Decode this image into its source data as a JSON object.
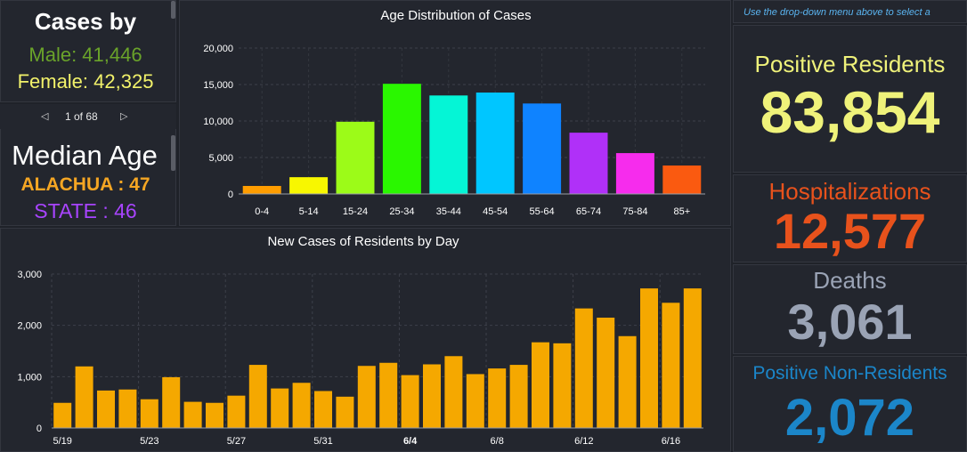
{
  "cases_by": {
    "title": "Cases by",
    "male": "Male: 41,446",
    "female": "Female: 42,325",
    "male_color": "#6aa32a",
    "female_color": "#f2f26a",
    "pager": "1 of 68"
  },
  "median_age": {
    "title": "Median Age",
    "county": "ALACHUA : 47",
    "state": "STATE : 46",
    "county_color": "#f5a623",
    "state_color": "#a844ff"
  },
  "note": "Use the drop-down menu above to select a",
  "positive_residents": {
    "label": "Positive Residents",
    "value": "83,854",
    "color": "#eff27a"
  },
  "hospitalizations": {
    "label": "Hospitalizations",
    "value": "12,577",
    "color": "#e8521c"
  },
  "deaths": {
    "label": "Deaths",
    "value": "3,061",
    "color": "#9aa3b5"
  },
  "positive_non_residents": {
    "label": "Positive Non-Residents",
    "value": "2,072",
    "color": "#1b86c9"
  },
  "chart_data": [
    {
      "type": "bar",
      "title": "Age Distribution of Cases",
      "categories": [
        "0-4",
        "5-14",
        "15-24",
        "25-34",
        "35-44",
        "45-54",
        "55-64",
        "65-74",
        "75-84",
        "85+"
      ],
      "values": [
        1100,
        2300,
        9900,
        15100,
        13500,
        13900,
        12400,
        8400,
        5600,
        3900
      ],
      "colors": [
        "#ff9d00",
        "#f8f700",
        "#9cfb18",
        "#2af700",
        "#05f5d6",
        "#00c6ff",
        "#0f83ff",
        "#b030f8",
        "#f62ced",
        "#fa5a10"
      ],
      "ylim": [
        0,
        20000
      ],
      "yticks": [
        "0",
        "5,000",
        "10,000",
        "15,000",
        "20,000"
      ],
      "ytick_values": [
        0,
        5000,
        10000,
        15000,
        20000
      ]
    },
    {
      "type": "bar",
      "title": "New Cases of Residents by Day",
      "x": [
        "5/19",
        "5/20",
        "5/21",
        "5/22",
        "5/23",
        "5/24",
        "5/25",
        "5/26",
        "5/27",
        "5/28",
        "5/29",
        "5/30",
        "5/31",
        "6/1",
        "6/2",
        "6/3",
        "6/4",
        "6/5",
        "6/6",
        "6/7",
        "6/8",
        "6/9",
        "6/10",
        "6/11",
        "6/12",
        "6/13",
        "6/14",
        "6/15",
        "6/16",
        "6/17"
      ],
      "values": [
        490,
        1200,
        730,
        750,
        560,
        990,
        510,
        490,
        630,
        1230,
        770,
        880,
        720,
        610,
        1210,
        1270,
        1030,
        1240,
        1400,
        1050,
        1160,
        1230,
        1670,
        1650,
        2330,
        2150,
        1790,
        2720,
        2440,
        2720
      ],
      "color": "#f5a800",
      "ylim": [
        0,
        3000
      ],
      "yticks": [
        "0",
        "1,000",
        "2,000",
        "3,000"
      ],
      "ytick_values": [
        0,
        1000,
        2000,
        3000
      ],
      "xtick_labels": [
        "5/19",
        "5/23",
        "5/27",
        "5/31",
        "6/4",
        "6/8",
        "6/12",
        "6/16"
      ],
      "bold_tick": "6/4"
    }
  ]
}
